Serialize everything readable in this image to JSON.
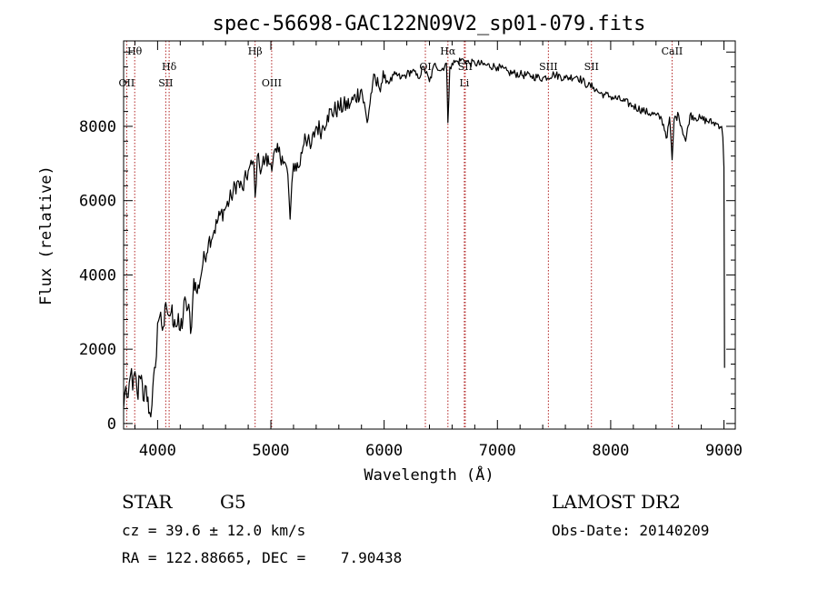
{
  "chart_data": {
    "type": "line",
    "title": "spec-56698-GAC122N09V2_sp01-079.fits",
    "xlabel": "Wavelength (Å)",
    "ylabel": "Flux (relative)",
    "xlim": [
      3700,
      9100
    ],
    "ylim": [
      -150,
      10300
    ],
    "x_ticks": [
      4000,
      5000,
      6000,
      7000,
      8000,
      9000
    ],
    "x_tick_labels": [
      "4000",
      "5000",
      "6000",
      "7000",
      "8000",
      "9000"
    ],
    "y_ticks": [
      0,
      2000,
      4000,
      6000,
      8000
    ],
    "y_tick_labels": [
      "0",
      "2000",
      "4000",
      "6000",
      "8000"
    ],
    "line_color": "#000000",
    "marker_color": "#b22222",
    "series": [
      {
        "name": "spectrum",
        "x": [
          3700,
          3720,
          3740,
          3760,
          3780,
          3800,
          3820,
          3850,
          3880,
          3900,
          3930,
          3950,
          3980,
          4000,
          4020,
          4050,
          4080,
          4100,
          4120,
          4150,
          4200,
          4250,
          4300,
          4320,
          4350,
          4400,
          4450,
          4500,
          4550,
          4600,
          4650,
          4700,
          4750,
          4800,
          4850,
          4861,
          4880,
          4900,
          4950,
          5000,
          5050,
          5100,
          5150,
          5170,
          5200,
          5250,
          5300,
          5350,
          5400,
          5450,
          5500,
          5600,
          5700,
          5800,
          5850,
          5900,
          5950,
          6000,
          6050,
          6100,
          6150,
          6200,
          6250,
          6300,
          6350,
          6400,
          6450,
          6500,
          6550,
          6563,
          6580,
          6600,
          6650,
          6700,
          6750,
          6800,
          6900,
          7000,
          7100,
          7200,
          7300,
          7400,
          7500,
          7600,
          7700,
          7800,
          7850,
          7900,
          7950,
          8000,
          8100,
          8200,
          8300,
          8400,
          8450,
          8498,
          8520,
          8542,
          8560,
          8600,
          8662,
          8700,
          8800,
          8900,
          8950,
          8980,
          8990,
          9000,
          9005
        ],
        "y": [
          400,
          1000,
          700,
          1300,
          900,
          1400,
          800,
          1200,
          600,
          1000,
          300,
          500,
          1500,
          2700,
          2900,
          2600,
          3100,
          2900,
          3000,
          2800,
          2500,
          3300,
          2600,
          3900,
          3500,
          4300,
          4900,
          5200,
          5600,
          5800,
          6100,
          6500,
          6300,
          6800,
          7000,
          6100,
          7200,
          6900,
          7100,
          7000,
          7300,
          7200,
          6700,
          5500,
          7000,
          6900,
          7800,
          7400,
          8000,
          7900,
          8300,
          8500,
          8600,
          9000,
          8100,
          9200,
          9100,
          9300,
          9200,
          9400,
          9300,
          9400,
          9500,
          9300,
          9600,
          9200,
          9700,
          9500,
          9700,
          8100,
          9600,
          9700,
          9750,
          9800,
          9700,
          9700,
          9650,
          9600,
          9450,
          9400,
          9350,
          9300,
          9400,
          9300,
          9350,
          9100,
          9050,
          8900,
          8850,
          8800,
          8700,
          8550,
          8400,
          8300,
          8200,
          7700,
          8250,
          7100,
          8200,
          8300,
          7600,
          8300,
          8200,
          8100,
          8050,
          8000,
          7700,
          6900,
          1500
        ]
      }
    ],
    "line_markers": [
      {
        "label": "Hθ",
        "x": 3798,
        "label_row": 0
      },
      {
        "label": "OII",
        "x": 3727,
        "label_row": 2
      },
      {
        "label": "Hδ",
        "x": 4102,
        "label_row": 1
      },
      {
        "label": "SII",
        "x": 4072,
        "label_row": 2
      },
      {
        "label": "Hβ",
        "x": 4861,
        "label_row": 0
      },
      {
        "label": "OIII",
        "x": 5007,
        "label_row": 2
      },
      {
        "label": "OI",
        "x": 6364,
        "label_row": 1
      },
      {
        "label": "Hα",
        "x": 6563,
        "label_row": 0
      },
      {
        "label": "Li",
        "x": 6708,
        "label_row": 2
      },
      {
        "label": "SII",
        "x": 6716,
        "label_row": 1
      },
      {
        "label": "SIII",
        "x": 7450,
        "label_row": 1
      },
      {
        "label": "SII",
        "x": 7830,
        "label_row": 1
      },
      {
        "label": "CaII",
        "x": 8542,
        "label_row": 0
      }
    ]
  },
  "info": {
    "object_class": "STAR",
    "subclass": "G5",
    "survey": "LAMOST DR2",
    "cz_line": "cz = 39.6 ± 12.0 km/s",
    "obs_date_line": "Obs-Date: 20140209",
    "coords_line": "RA = 122.88665, DEC =    7.90438"
  }
}
